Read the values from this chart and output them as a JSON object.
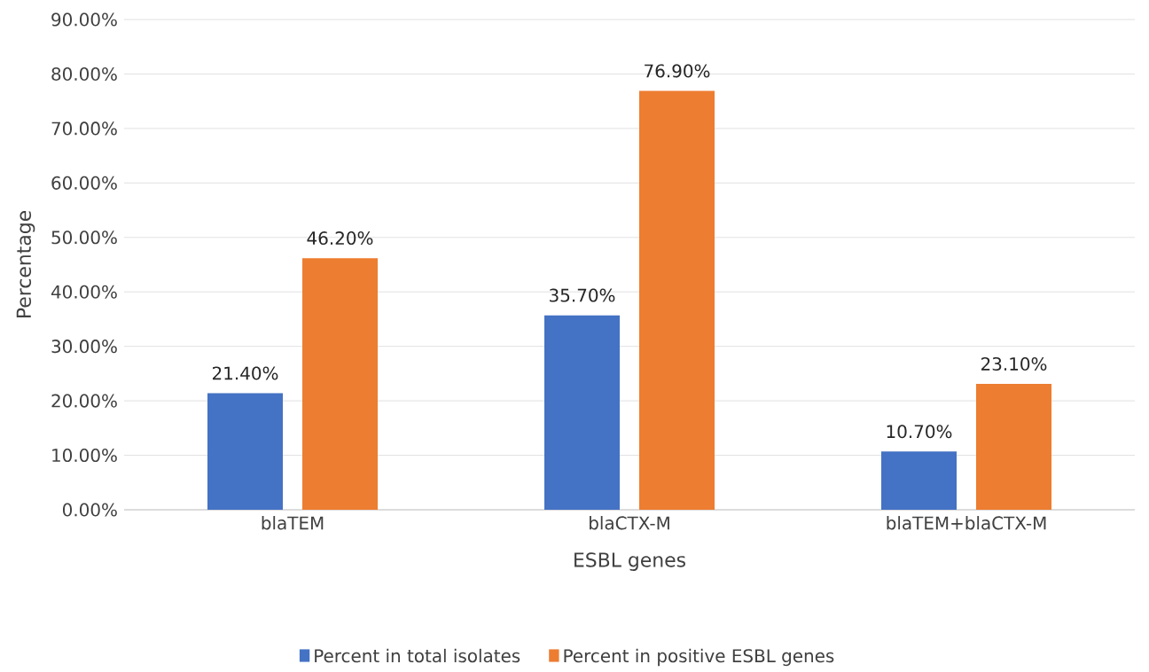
{
  "chart_data": {
    "type": "bar",
    "xlabel": "ESBL genes",
    "ylabel": "Percentage",
    "categories": [
      "blaTEM",
      "blaCTX-M",
      "blaTEM+blaCTX-M"
    ],
    "series": [
      {
        "name": "Percent in total isolates",
        "color": "#4472c4",
        "values": [
          21.4,
          35.7,
          10.7
        ],
        "value_labels": [
          "21.40%",
          "35.70%",
          "10.70%"
        ]
      },
      {
        "name": "Percent in positive ESBL genes",
        "color": "#ed7d31",
        "values": [
          46.2,
          76.9,
          23.1
        ],
        "value_labels": [
          "46.20%",
          "76.90%",
          "23.10%"
        ]
      }
    ],
    "ylim": [
      0,
      90
    ],
    "yticks": [
      {
        "value": 0,
        "label": "0.00%"
      },
      {
        "value": 10,
        "label": "10.00%"
      },
      {
        "value": 20,
        "label": "20.00%"
      },
      {
        "value": 30,
        "label": "30.00%"
      },
      {
        "value": 40,
        "label": "40.00%"
      },
      {
        "value": 50,
        "label": "50.00%"
      },
      {
        "value": 60,
        "label": "60.00%"
      },
      {
        "value": 70,
        "label": "70.00%"
      },
      {
        "value": 80,
        "label": "80.00%"
      },
      {
        "value": 90,
        "label": "90.00%"
      }
    ],
    "grid": "y",
    "legend": "bottom"
  }
}
